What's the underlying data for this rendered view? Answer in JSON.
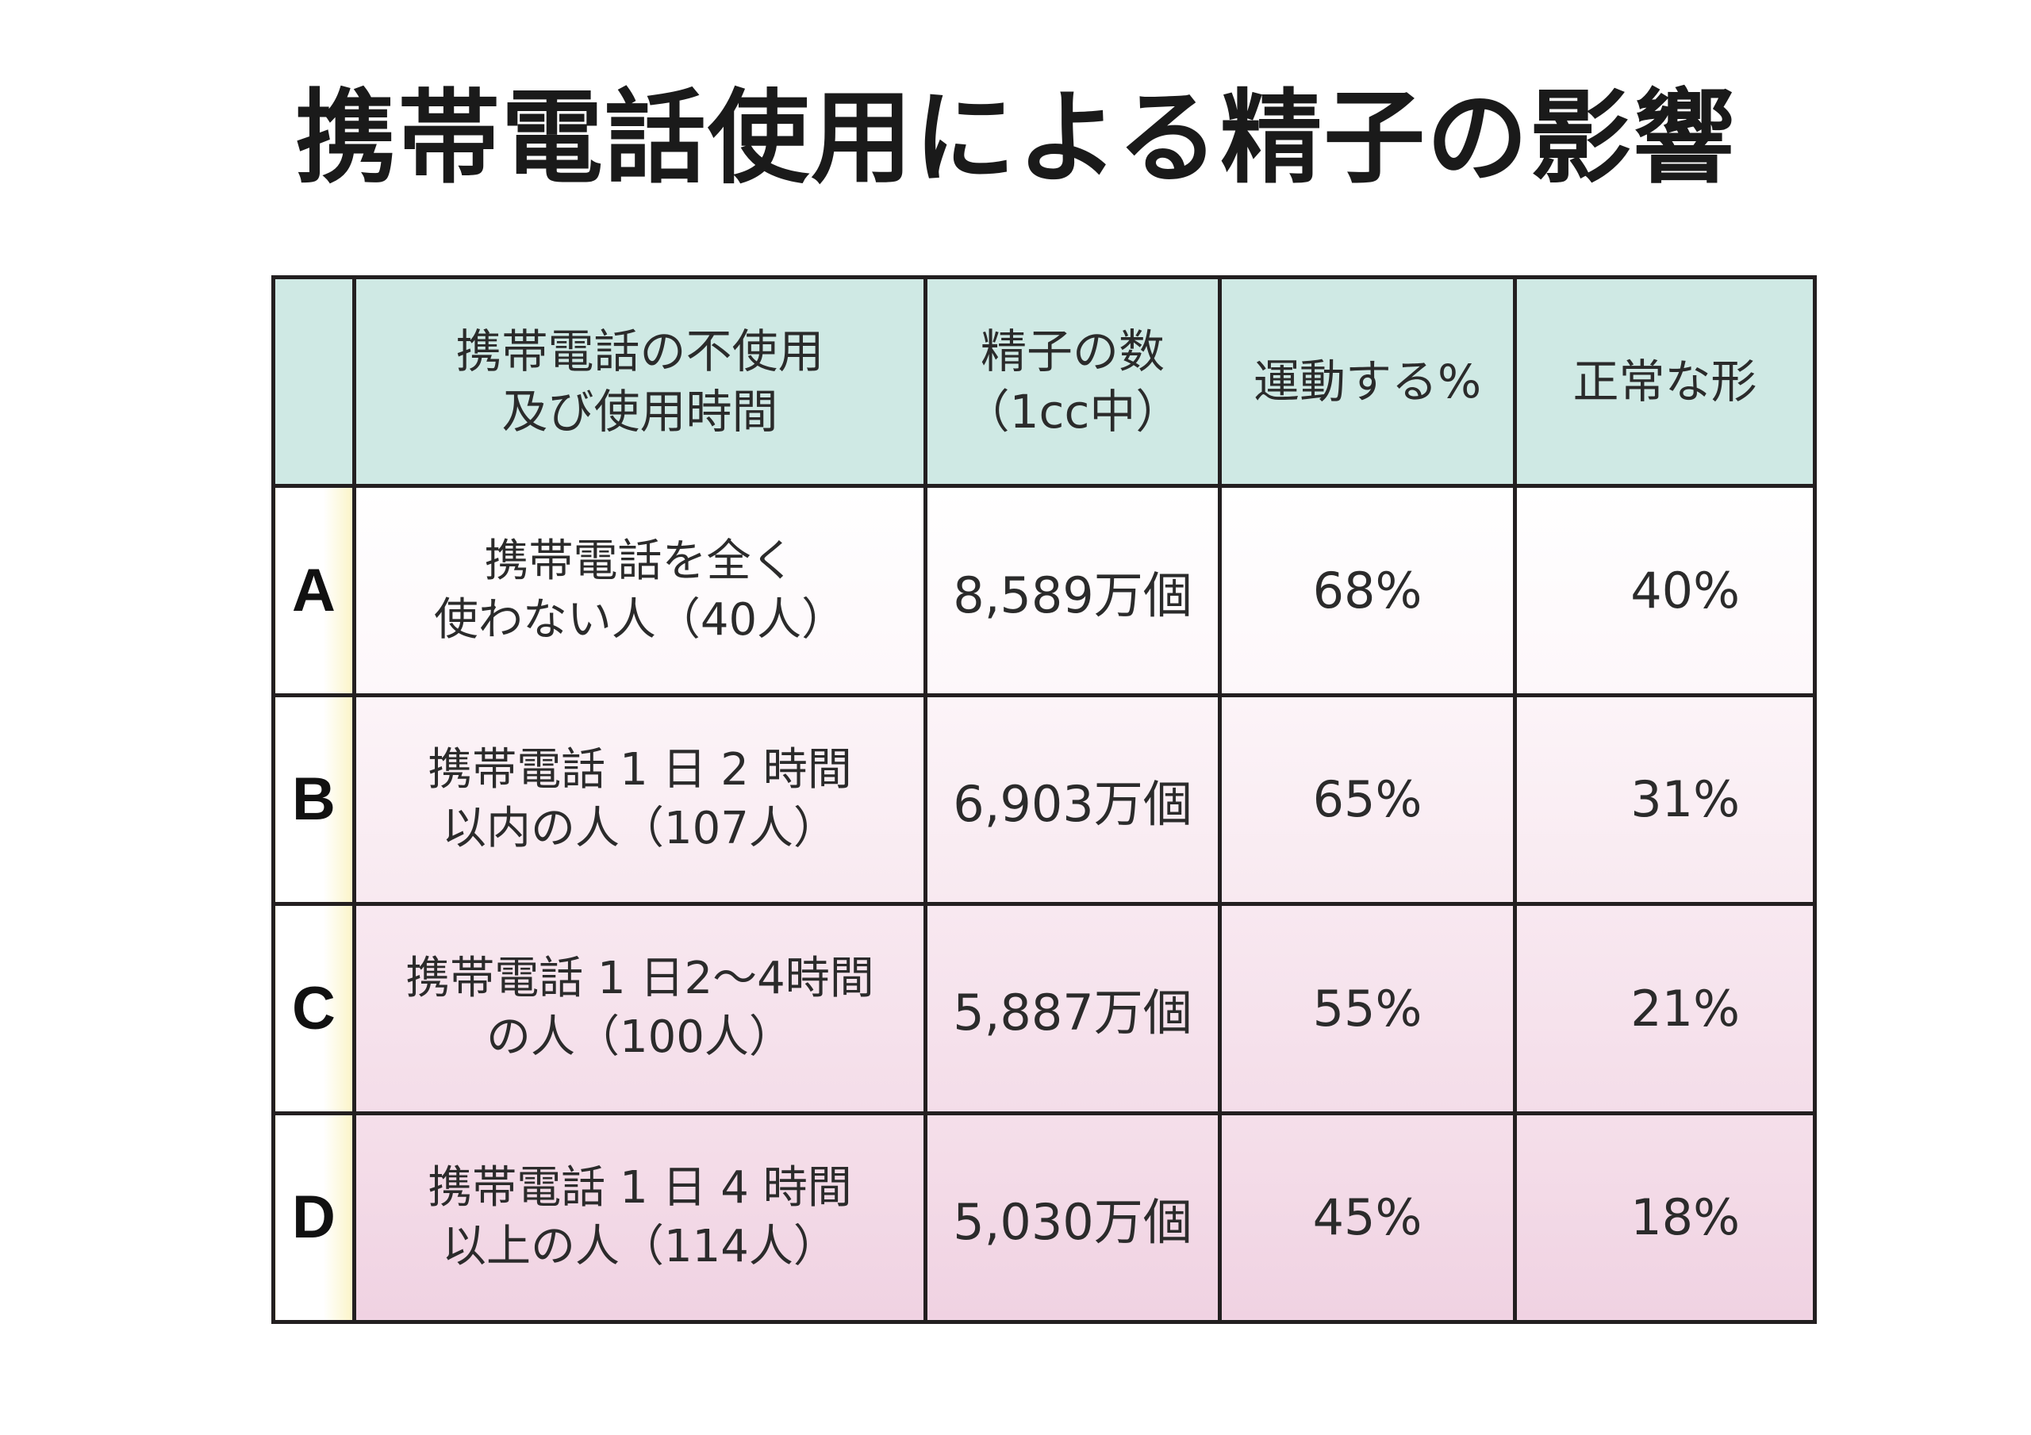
{
  "title": "携帯電話使用による精子の影響",
  "table": {
    "headers": {
      "label": "",
      "usage_line1": "携帯電話の不使用",
      "usage_line2": "及び使用時間",
      "count_line1": "精子の数",
      "count_line2": "（1cc中）",
      "motility": "運動する%",
      "normal_shape": "正常な形"
    },
    "rows": [
      {
        "label": "A",
        "usage_line1": "携帯電話を全く",
        "usage_line2": "使わない人（40人）",
        "count": "8,589万個",
        "motility": "68%",
        "normal_shape": "40%"
      },
      {
        "label": "B",
        "usage_line1": "携帯電話 1 日 2 時間",
        "usage_line2": "以内の人（107人）",
        "count": "6,903万個",
        "motility": "65%",
        "normal_shape": "31%"
      },
      {
        "label": "C",
        "usage_line1": "携帯電話 1 日2〜4時間",
        "usage_line2": "の人（100人）",
        "count": "5,887万個",
        "motility": "55%",
        "normal_shape": "21%"
      },
      {
        "label": "D",
        "usage_line1": "携帯電話 1 日 4 時間",
        "usage_line2": "以上の人（114人）",
        "count": "5,030万個",
        "motility": "45%",
        "normal_shape": "18%"
      }
    ]
  },
  "colors": {
    "header_bg": "#cfe9e4",
    "label_accent": "#fbf4c8",
    "row_tint": "#f0d2e2",
    "border": "#231f20"
  }
}
